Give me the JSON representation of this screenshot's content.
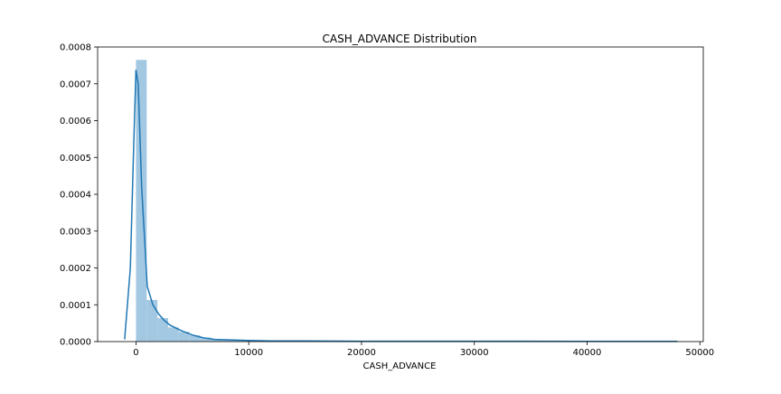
{
  "chart_data": {
    "type": "bar",
    "title": "CASH_ADVANCE Distribution",
    "xlabel": "CASH_ADVANCE",
    "ylabel": "",
    "xlim": [
      -3400,
      50300
    ],
    "ylim": [
      0,
      0.0008
    ],
    "x_ticks": [
      0,
      10000,
      20000,
      30000,
      40000,
      50000
    ],
    "x_tick_labels": [
      "0",
      "10000",
      "20000",
      "30000",
      "40000",
      "50000"
    ],
    "y_ticks": [
      0,
      0.0001,
      0.0002,
      0.0003,
      0.0004,
      0.0005,
      0.0006,
      0.0007,
      0.0008
    ],
    "y_tick_labels": [
      "0.0000",
      "0.0001",
      "0.0002",
      "0.0003",
      "0.0004",
      "0.0005",
      "0.0006",
      "0.0007",
      "0.0008"
    ],
    "grid": false,
    "colors": {
      "hist": "#9ec5e0",
      "kde": "#1f77b4"
    },
    "histogram": {
      "bin_width": 950,
      "bin_start": 0,
      "densities": [
        0.000765,
        0.000113,
        6.4e-05,
        3.85e-05,
        2.65e-05,
        1.7e-05,
        1.1e-05,
        7.5e-06,
        5e-06,
        3.5e-06,
        2.5e-06,
        1.8e-06,
        1.3e-06,
        1e-06,
        8e-07,
        6e-07,
        5e-07,
        4e-07,
        3e-07,
        3e-07,
        2e-07,
        2e-07,
        2e-07,
        1e-07,
        1e-07,
        1e-07,
        1e-07,
        1e-07,
        1e-07,
        1e-07,
        1e-07,
        1e-07,
        1e-07,
        1e-07,
        1e-07,
        1e-07,
        1e-07,
        1e-07,
        1e-07,
        1e-07,
        1e-07,
        1e-07,
        1e-07,
        1e-07,
        1e-07,
        1e-07,
        1e-07,
        1e-07,
        1e-07,
        1e-07,
        1e-07
      ]
    },
    "kde": {
      "x": [
        -1000,
        -500,
        -200,
        0,
        200,
        500,
        1000,
        1500,
        2000,
        2500,
        3000,
        4000,
        5000,
        6000,
        7000,
        8000,
        10000,
        12000,
        15000,
        20000,
        25000,
        30000,
        35000,
        40000,
        45000,
        48000
      ],
      "y": [
        6e-06,
        0.0002,
        0.00053,
        0.000738,
        0.0007,
        0.00042,
        0.00015,
        0.0001,
        7.5e-05,
        5.8e-05,
        4.5e-05,
        3e-05,
        1.8e-05,
        1e-05,
        6e-06,
        5e-06,
        3e-06,
        2e-06,
        2e-06,
        1e-06,
        1e-06,
        1e-06,
        1e-06,
        5e-07,
        5e-07,
        5e-07
      ]
    }
  }
}
